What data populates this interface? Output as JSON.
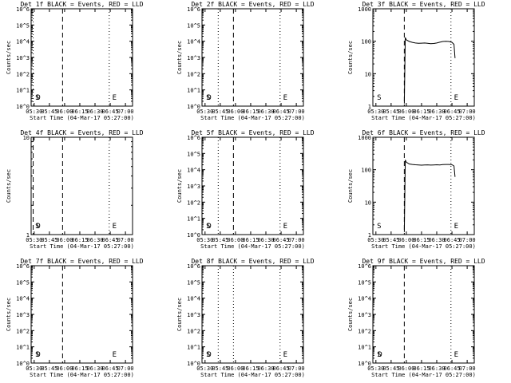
{
  "figure": {
    "xlabel": "Start Time (04-Mar-17 05:27:00)",
    "ylabel": "Counts/sec",
    "x_tick_labels": [
      "05:30",
      "05:45",
      "06:00",
      "06:15",
      "06:30",
      "06:45",
      "07:00"
    ],
    "colors": {
      "events": "#000000",
      "lld": "#ff0000",
      "background": "#ffffff"
    }
  },
  "chart_data": [
    {
      "type": "line",
      "title": "Det 1f BLACK = Events, RED = LLD",
      "xlabel": "Start Time (04-Mar-17 05:27:00)",
      "ylabel": "Counts/sec",
      "y_scale": "log",
      "ylim": [
        1,
        1000000
      ],
      "y_tick_labels": [
        "10^0",
        "10^1",
        "10^2",
        "10^3",
        "10^4",
        "10^5",
        "10^6"
      ],
      "x_tick_labels": [
        "05:30",
        "05:45",
        "06:00",
        "06:15",
        "06:30",
        "06:45",
        "07:00"
      ],
      "xlim": [
        "05:27",
        "07:07"
      ],
      "markers": [
        {
          "label": "S",
          "time": "05:31"
        },
        {
          "label": "D",
          "time": "05:32"
        },
        {
          "label": "E",
          "time": "06:47"
        }
      ],
      "vlines": [
        {
          "time": "05:29",
          "style": "dotted"
        },
        {
          "time": "05:58",
          "style": "dashed"
        },
        {
          "time": "06:44",
          "style": "dotted"
        }
      ],
      "series": []
    },
    {
      "type": "line",
      "title": "Det 2f BLACK = Events, RED = LLD",
      "xlabel": "Start Time (04-Mar-17 05:27:00)",
      "ylabel": "Counts/sec",
      "y_scale": "log",
      "ylim": [
        1,
        1000000
      ],
      "y_tick_labels": [
        "10^0",
        "10^1",
        "10^2",
        "10^3",
        "10^4",
        "10^5",
        "10^6"
      ],
      "x_tick_labels": [
        "05:30",
        "05:45",
        "06:00",
        "06:15",
        "06:30",
        "06:45",
        "07:00"
      ],
      "xlim": [
        "05:27",
        "07:07"
      ],
      "markers": [
        {
          "label": "S",
          "time": "05:31"
        },
        {
          "label": "D",
          "time": "05:32"
        },
        {
          "label": "E",
          "time": "06:47"
        }
      ],
      "vlines": [
        {
          "time": "05:43",
          "style": "dotted"
        },
        {
          "time": "05:58",
          "style": "dashed"
        },
        {
          "time": "06:44",
          "style": "dotted"
        }
      ],
      "series": []
    },
    {
      "type": "line",
      "title": "Det 3f BLACK = Events, RED = LLD",
      "xlabel": "Start Time (04-Mar-17 05:27:00)",
      "ylabel": "Counts/sec",
      "y_scale": "log",
      "ylim": [
        1,
        1000
      ],
      "y_tick_labels": [
        "1",
        "10",
        "100",
        "1000"
      ],
      "x_tick_labels": [
        "05:30",
        "05:45",
        "06:00",
        "06:15",
        "06:30",
        "06:45",
        "07:00"
      ],
      "xlim": [
        "05:27",
        "07:07"
      ],
      "markers": [
        {
          "label": "S",
          "time": "05:31"
        },
        {
          "label": "E",
          "time": "06:47"
        }
      ],
      "vlines": [
        {
          "time": "05:58",
          "style": "dashed"
        },
        {
          "time": "06:44",
          "style": "dotted"
        }
      ],
      "series": [
        {
          "color": "#000000",
          "x": [
            "05:58",
            "05:59",
            "06:00",
            "06:03",
            "06:06",
            "06:09",
            "06:12",
            "06:15",
            "06:18",
            "06:21",
            "06:24",
            "06:27",
            "06:30",
            "06:33",
            "06:36",
            "06:39",
            "06:42",
            "06:45",
            "06:47",
            "06:48"
          ],
          "y": [
            1.2,
            130,
            110,
            98,
            92,
            88,
            86,
            87,
            88,
            86,
            84,
            85,
            88,
            93,
            98,
            100,
            98,
            92,
            80,
            30
          ]
        }
      ]
    },
    {
      "type": "line",
      "title": "Det 4f BLACK = Events, RED = LLD",
      "xlabel": "Start Time (04-Mar-17 05:27:00)",
      "ylabel": "Counts/sec",
      "y_scale": "log",
      "ylim": [
        1,
        10
      ],
      "y_tick_labels": [
        "1",
        "10"
      ],
      "x_tick_labels": [
        "05:30",
        "05:45",
        "06:00",
        "06:15",
        "06:30",
        "06:45",
        "07:00"
      ],
      "xlim": [
        "05:27",
        "07:07"
      ],
      "markers": [
        {
          "label": "S",
          "time": "05:31"
        },
        {
          "label": "D",
          "time": "05:32"
        },
        {
          "label": "E",
          "time": "06:47"
        }
      ],
      "vlines": [
        {
          "time": "05:29",
          "style": "dashed"
        },
        {
          "time": "05:58",
          "style": "dashed"
        },
        {
          "time": "06:44",
          "style": "dotted"
        }
      ],
      "series": []
    },
    {
      "type": "line",
      "title": "Det 5f BLACK = Events, RED = LLD",
      "xlabel": "Start Time (04-Mar-17 05:27:00)",
      "ylabel": "Counts/sec",
      "y_scale": "log",
      "ylim": [
        1,
        1000000
      ],
      "y_tick_labels": [
        "10^0",
        "10^1",
        "10^2",
        "10^3",
        "10^4",
        "10^5",
        "10^6"
      ],
      "x_tick_labels": [
        "05:30",
        "05:45",
        "06:00",
        "06:15",
        "06:30",
        "06:45",
        "07:00"
      ],
      "xlim": [
        "05:27",
        "07:07"
      ],
      "markers": [
        {
          "label": "S",
          "time": "05:31"
        },
        {
          "label": "D",
          "time": "05:32"
        },
        {
          "label": "E",
          "time": "06:47"
        }
      ],
      "vlines": [
        {
          "time": "05:43",
          "style": "dotted"
        },
        {
          "time": "05:58",
          "style": "dashed"
        },
        {
          "time": "06:44",
          "style": "dotted"
        }
      ],
      "series": []
    },
    {
      "type": "line",
      "title": "Det 6f BLACK = Events, RED = LLD",
      "xlabel": "Start Time (04-Mar-17 05:27:00)",
      "ylabel": "Counts/sec",
      "y_scale": "log",
      "ylim": [
        1,
        1000
      ],
      "y_tick_labels": [
        "1",
        "10",
        "100",
        "1000"
      ],
      "x_tick_labels": [
        "05:30",
        "05:45",
        "06:00",
        "06:15",
        "06:30",
        "06:45",
        "07:00"
      ],
      "xlim": [
        "05:27",
        "07:07"
      ],
      "markers": [
        {
          "label": "S",
          "time": "05:31"
        },
        {
          "label": "E",
          "time": "06:47"
        }
      ],
      "vlines": [
        {
          "time": "05:58",
          "style": "dashed"
        },
        {
          "time": "06:44",
          "style": "dotted"
        }
      ],
      "series": [
        {
          "color": "#000000",
          "x": [
            "05:58",
            "05:59",
            "06:00",
            "06:03",
            "06:06",
            "06:09",
            "06:12",
            "06:15",
            "06:18",
            "06:21",
            "06:24",
            "06:27",
            "06:30",
            "06:33",
            "06:36",
            "06:39",
            "06:42",
            "06:45",
            "06:47",
            "06:48"
          ],
          "y": [
            1.2,
            200,
            170,
            150,
            145,
            142,
            140,
            138,
            140,
            141,
            139,
            140,
            142,
            140,
            143,
            145,
            145,
            142,
            130,
            60
          ]
        }
      ]
    },
    {
      "type": "line",
      "title": "Det 7f BLACK = Events, RED = LLD",
      "xlabel": "Start Time (04-Mar-17 05:27:00)",
      "ylabel": "Counts/sec",
      "y_scale": "log",
      "ylim": [
        1,
        1000000
      ],
      "y_tick_labels": [
        "10^0",
        "10^1",
        "10^2",
        "10^3",
        "10^4",
        "10^5",
        "10^6"
      ],
      "x_tick_labels": [
        "05:30",
        "05:45",
        "06:00",
        "06:15",
        "06:30",
        "06:45",
        "07:00"
      ],
      "xlim": [
        "05:27",
        "07:07"
      ],
      "markers": [
        {
          "label": "S",
          "time": "05:31"
        },
        {
          "label": "D",
          "time": "05:32"
        },
        {
          "label": "E",
          "time": "06:47"
        }
      ],
      "vlines": [
        {
          "time": "05:58",
          "style": "dashed"
        }
      ],
      "series": []
    },
    {
      "type": "line",
      "title": "Det 8f BLACK = Events, RED = LLD",
      "xlabel": "Start Time (04-Mar-17 05:27:00)",
      "ylabel": "Counts/sec",
      "y_scale": "log",
      "ylim": [
        1,
        1000000
      ],
      "y_tick_labels": [
        "10^0",
        "10^1",
        "10^2",
        "10^3",
        "10^4",
        "10^5",
        "10^6"
      ],
      "x_tick_labels": [
        "05:30",
        "05:45",
        "06:00",
        "06:15",
        "06:30",
        "06:45",
        "07:00"
      ],
      "xlim": [
        "05:27",
        "07:07"
      ],
      "markers": [
        {
          "label": "S",
          "time": "05:31"
        },
        {
          "label": "D",
          "time": "05:32"
        },
        {
          "label": "E",
          "time": "06:47"
        }
      ],
      "vlines": [
        {
          "time": "05:43",
          "style": "dotted"
        },
        {
          "time": "05:58",
          "style": "dotted"
        },
        {
          "time": "06:44",
          "style": "dotted"
        }
      ],
      "series": []
    },
    {
      "type": "line",
      "title": "Det 9f BLACK = Events, RED = LLD",
      "xlabel": "Start Time (04-Mar-17 05:27:00)",
      "ylabel": "Counts/sec",
      "y_scale": "log",
      "ylim": [
        1,
        1000000
      ],
      "y_tick_labels": [
        "10^0",
        "10^1",
        "10^2",
        "10^3",
        "10^4",
        "10^5",
        "10^6"
      ],
      "x_tick_labels": [
        "05:30",
        "05:45",
        "06:00",
        "06:15",
        "06:30",
        "06:45",
        "07:00"
      ],
      "xlim": [
        "05:27",
        "07:07"
      ],
      "markers": [
        {
          "label": "S",
          "time": "05:31"
        },
        {
          "label": "D",
          "time": "05:32"
        },
        {
          "label": "E",
          "time": "06:47"
        }
      ],
      "vlines": [
        {
          "time": "05:58",
          "style": "dashed"
        },
        {
          "time": "06:44",
          "style": "dotted"
        }
      ],
      "series": []
    }
  ]
}
